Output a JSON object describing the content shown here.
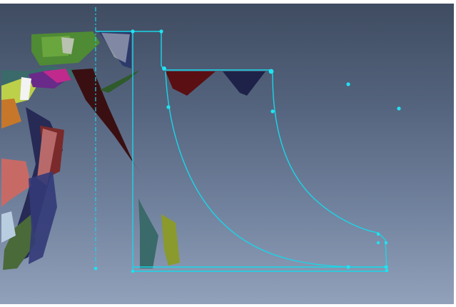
{
  "viewport": {
    "description_free": true,
    "background_top": "#3e4b60",
    "background_bottom": "#93a2bb"
  },
  "colors": {
    "sketch_line": "#19d6e8",
    "sketch_point": "#1fe3f2",
    "mesh_dark_red": "#5a0f12",
    "mesh_navy": "#1e2248",
    "mesh_green": "#5a9a3a",
    "mesh_olive": "#8a9a2c",
    "mesh_teal": "#3a6a6a",
    "mesh_purple": "#6a2a8a",
    "mesh_magenta": "#c02a8c",
    "mesh_salmon": "#c76a66"
  },
  "icons": [
    "sketch-point",
    "construction-centerline",
    "scan-mesh"
  ]
}
